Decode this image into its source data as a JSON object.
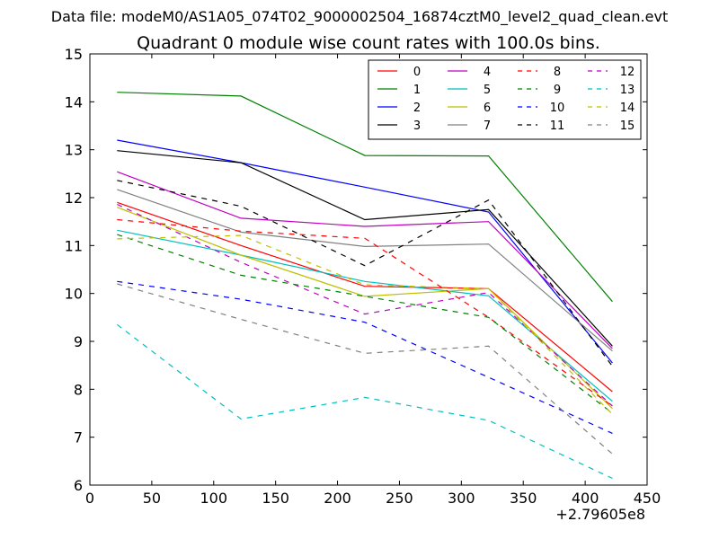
{
  "chart_data": {
    "type": "line",
    "suptitle": "Data file: modeM0/AS1A05_074T02_9000002504_16874cztM0_level2_quad_clean.evt",
    "title": "Quadrant 0 module wise count rates with 100.0s bins.",
    "xlabel": "",
    "ylabel": "",
    "x_offset_label": "+2.79605e8",
    "xlim": [
      0,
      450
    ],
    "ylim": [
      6,
      15
    ],
    "xticks": [
      0,
      50,
      100,
      150,
      200,
      250,
      300,
      350,
      400,
      450
    ],
    "yticks": [
      6,
      7,
      8,
      9,
      10,
      11,
      12,
      13,
      14,
      15
    ],
    "x": [
      22,
      122,
      222,
      322,
      422
    ],
    "legend_location": "top-right",
    "series": [
      {
        "name": "0",
        "color": "#ff0000",
        "dash": "solid",
        "values": [
          11.9,
          11.0,
          10.15,
          10.1,
          7.95
        ]
      },
      {
        "name": "1",
        "color": "#008000",
        "dash": "solid",
        "values": [
          14.2,
          14.12,
          12.88,
          12.87,
          9.83
        ]
      },
      {
        "name": "2",
        "color": "#0000ff",
        "dash": "solid",
        "values": [
          13.2,
          12.73,
          12.22,
          11.7,
          8.55
        ]
      },
      {
        "name": "3",
        "color": "#000000",
        "dash": "solid",
        "values": [
          12.98,
          12.73,
          11.54,
          11.75,
          8.9
        ]
      },
      {
        "name": "4",
        "color": "#bf00bf",
        "dash": "solid",
        "values": [
          12.54,
          11.57,
          11.4,
          11.5,
          8.85
        ]
      },
      {
        "name": "5",
        "color": "#00bfbf",
        "dash": "solid",
        "values": [
          11.32,
          10.8,
          10.25,
          9.95,
          7.75
        ]
      },
      {
        "name": "6",
        "color": "#bfbf00",
        "dash": "solid",
        "values": [
          11.8,
          10.8,
          9.94,
          10.1,
          7.6
        ]
      },
      {
        "name": "7",
        "color": "#808080",
        "dash": "solid",
        "values": [
          12.17,
          11.28,
          10.98,
          11.03,
          8.8
        ]
      },
      {
        "name": "8",
        "color": "#ff0000",
        "dash": "dashed",
        "values": [
          11.54,
          11.3,
          11.15,
          9.5,
          7.65
        ]
      },
      {
        "name": "9",
        "color": "#008000",
        "dash": "dashed",
        "values": [
          11.23,
          10.38,
          9.94,
          9.5,
          7.5
        ]
      },
      {
        "name": "10",
        "color": "#0000ff",
        "dash": "dashed",
        "values": [
          10.25,
          9.88,
          9.4,
          8.25,
          7.08
        ]
      },
      {
        "name": "11",
        "color": "#000000",
        "dash": "dashed",
        "values": [
          12.36,
          11.82,
          10.58,
          11.95,
          8.48
        ]
      },
      {
        "name": "12",
        "color": "#bf00bf",
        "dash": "dashed",
        "values": [
          11.86,
          10.65,
          9.57,
          10.02,
          7.65
        ]
      },
      {
        "name": "13",
        "color": "#00bfbf",
        "dash": "dashed",
        "values": [
          9.35,
          7.38,
          7.83,
          7.35,
          6.14
        ]
      },
      {
        "name": "14",
        "color": "#bfbf00",
        "dash": "dashed",
        "values": [
          11.14,
          11.21,
          10.18,
          10.1,
          7.48
        ]
      },
      {
        "name": "15",
        "color": "#808080",
        "dash": "dashed",
        "values": [
          10.2,
          9.46,
          8.75,
          8.9,
          6.65
        ]
      }
    ]
  }
}
